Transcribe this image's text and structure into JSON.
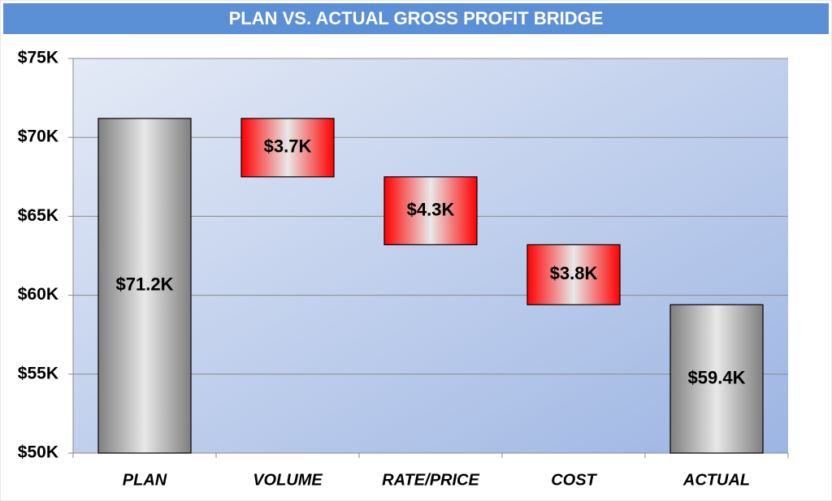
{
  "chart_data": {
    "type": "waterfall",
    "title": "PLAN VS. ACTUAL GROSS PROFIT BRIDGE",
    "categories": [
      "PLAN",
      "VOLUME",
      "RATE/PRICE",
      "COST",
      "ACTUAL"
    ],
    "values": [
      71200,
      -3700,
      -4300,
      -3800,
      59400
    ],
    "value_labels": [
      "$71.2K",
      "$3.7K",
      "$4.3K",
      "$3.8K",
      "$59.4K"
    ],
    "color": "#7f7f7f",
    "decrease_color": "#ff0000",
    "ylim": [
      50000,
      75000
    ],
    "yticks": [
      {
        "value": 50000,
        "label": "$50K"
      },
      {
        "value": 55000,
        "label": "$55K"
      },
      {
        "value": 60000,
        "label": "$60K"
      },
      {
        "value": 65000,
        "label": "$65K"
      },
      {
        "value": 70000,
        "label": "$70K"
      },
      {
        "value": 75000,
        "label": "$75K"
      }
    ],
    "grid": true
  }
}
